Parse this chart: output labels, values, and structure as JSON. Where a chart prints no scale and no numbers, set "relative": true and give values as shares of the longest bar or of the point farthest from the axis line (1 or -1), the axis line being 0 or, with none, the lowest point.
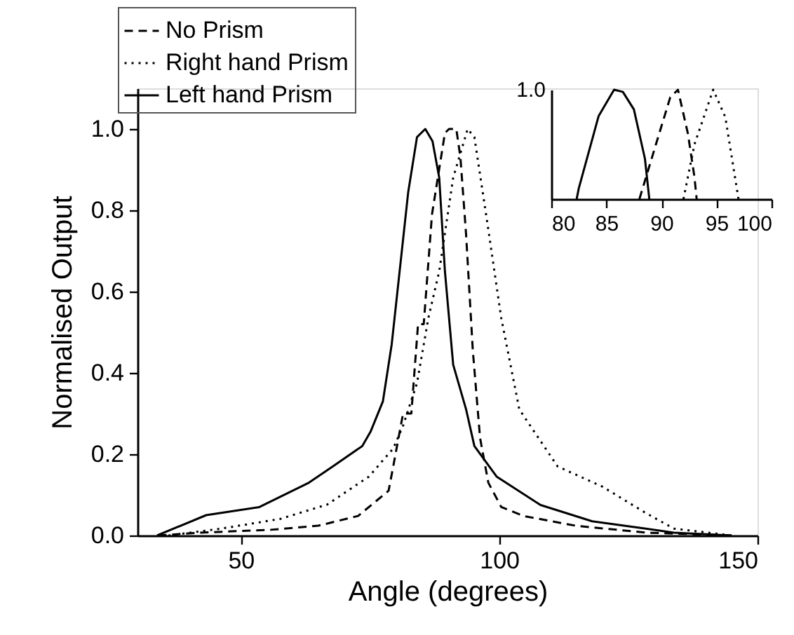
{
  "chart_data": [
    {
      "type": "line",
      "xlabel": "Angle (degrees)",
      "ylabel": "Normalised Output",
      "xlim": [
        30,
        150
      ],
      "ylim": [
        0,
        1.1
      ],
      "xticks": [
        50,
        100,
        150
      ],
      "yticks": [
        {
          "value": 0,
          "label": "0.0"
        },
        0.2,
        0.4,
        0.6,
        0.8,
        {
          "value": 1,
          "label": "1.0"
        }
      ],
      "grid": false,
      "legend": "top left",
      "marker": "none",
      "series": [
        {
          "name": "No Prism",
          "color": "#000000",
          "line_style": "dashed",
          "x": [
            34,
            42.2,
            55.8,
            65,
            72.7,
            78.6,
            79.5,
            81.4,
            83,
            84.3,
            85.4,
            87,
            89.5,
            90.3,
            91.7,
            92.5,
            93.6,
            94.9,
            96.3,
            97.9,
            100.4,
            104.7,
            114.8,
            128.4,
            145
          ],
          "values": [
            0,
            0.007,
            0.014,
            0.024,
            0.048,
            0.11,
            0.17,
            0.3,
            0.3,
            0.52,
            0.52,
            0.79,
            0.99,
            1.0,
            1.0,
            0.93,
            0.74,
            0.455,
            0.24,
            0.13,
            0.07,
            0.048,
            0.024,
            0.007,
            0
          ]
        },
        {
          "name": "Right hand Prism",
          "color": "#000000",
          "line_style": "dotted",
          "x": [
            36,
            46.3,
            57.7,
            66.7,
            74.8,
            79.5,
            81.4,
            84.1,
            86.3,
            88.4,
            91.1,
            93.9,
            95.2,
            97.7,
            100.4,
            103.9,
            111.3,
            120,
            128.4,
            133.8,
            145
          ],
          "values": [
            0,
            0.017,
            0.041,
            0.076,
            0.145,
            0.214,
            0.27,
            0.375,
            0.535,
            0.65,
            0.88,
            1.0,
            0.98,
            0.77,
            0.535,
            0.31,
            0.17,
            0.12,
            0.055,
            0.017,
            0
          ]
        },
        {
          "name": "Left hand Prism",
          "color": "#000000",
          "line_style": "solid",
          "x": [
            33.8,
            43.3,
            53.6,
            63.2,
            67.8,
            73.5,
            75.1,
            77.5,
            79.2,
            82.4,
            84.1,
            85.7,
            87.1,
            88.4,
            89.5,
            91.1,
            93.6,
            95.2,
            99.5,
            108,
            118,
            128.4,
            133.8,
            145
          ],
          "values": [
            0,
            0.05,
            0.07,
            0.13,
            0.17,
            0.22,
            0.255,
            0.33,
            0.47,
            0.845,
            0.98,
            1.0,
            0.97,
            0.88,
            0.65,
            0.42,
            0.31,
            0.22,
            0.145,
            0.075,
            0.035,
            0.017,
            0.007,
            0
          ]
        }
      ]
    },
    {
      "type": "line",
      "xlim": [
        80,
        100
      ],
      "xticks": [
        80,
        85,
        90,
        95,
        100
      ],
      "relative": true,
      "annotations": [
        "1.0"
      ],
      "grid": false,
      "marker": "none",
      "series": [
        {
          "color": "#000000",
          "line_style": "dashed",
          "x": [
            88.0,
            89.5,
            90.8,
            91.5,
            92.4,
            93.0,
            93.2
          ],
          "values": [
            0,
            0.5,
            0.93,
            1.0,
            0.6,
            0.2,
            0
          ]
        },
        {
          "color": "#000000",
          "line_style": "dotted",
          "x": [
            92.0,
            93.0,
            94.7,
            95.8,
            97.0
          ],
          "values": [
            0,
            0.5,
            1.0,
            0.75,
            0
          ]
        },
        {
          "color": "#000000",
          "line_style": "solid",
          "x": [
            82.3,
            82.5,
            84.3,
            85.7,
            86.5,
            87.5,
            88.5,
            88.9
          ],
          "values": [
            0,
            0.1,
            0.76,
            1.0,
            0.98,
            0.82,
            0.37,
            0
          ]
        }
      ]
    }
  ]
}
